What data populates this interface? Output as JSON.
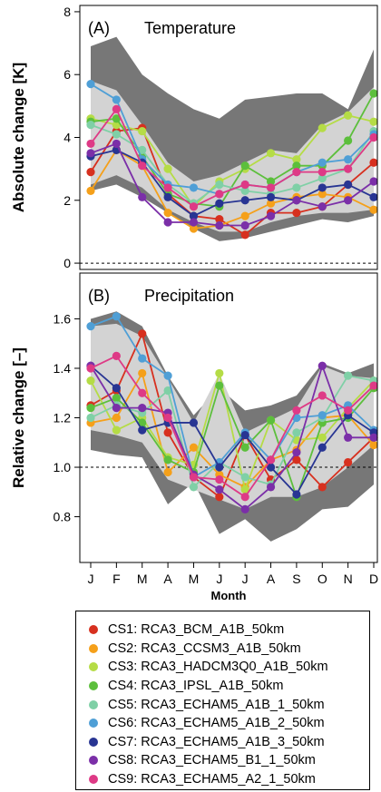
{
  "chart_data": [
    {
      "type": "line",
      "panel_label": "(A)",
      "title": "Temperature",
      "ylabel": "Absolute change [K]",
      "xlabel": "",
      "categories": [
        "J",
        "F",
        "M",
        "A",
        "M",
        "J",
        "J",
        "A",
        "S",
        "O",
        "N",
        "D"
      ],
      "ylim": [
        -0.2,
        8.2
      ],
      "yticks": [
        0,
        2,
        4,
        6,
        8
      ],
      "reference_line": 0,
      "envelope_dark": {
        "upper": [
          6.9,
          7.2,
          6.0,
          5.4,
          4.9,
          4.6,
          5.2,
          5.3,
          5.4,
          5.4,
          4.9,
          6.8
        ],
        "lower": [
          2.3,
          2.5,
          2.1,
          1.6,
          1.1,
          0.7,
          0.8,
          1.0,
          1.2,
          1.4,
          1.3,
          1.5
        ]
      },
      "envelope_light": {
        "upper": [
          5.8,
          5.5,
          4.4,
          3.2,
          2.6,
          2.8,
          3.2,
          3.6,
          3.5,
          4.4,
          4.8,
          5.6
        ],
        "lower": [
          2.5,
          2.8,
          2.4,
          1.7,
          1.3,
          1.0,
          1.0,
          1.3,
          1.5,
          1.6,
          1.6,
          1.7
        ]
      },
      "series": [
        {
          "name": "CS1: RCA3_BCM_A1B_50km",
          "color": "#d7301f",
          "values": [
            2.9,
            4.2,
            4.3,
            2.2,
            1.5,
            1.4,
            0.9,
            1.6,
            1.6,
            1.8,
            2.5,
            3.2
          ]
        },
        {
          "name": "CS2: RCA3_CCSM3_A1B_50km",
          "color": "#f5a01a",
          "values": [
            2.3,
            3.6,
            3.1,
            1.6,
            1.1,
            1.2,
            1.5,
            1.9,
            2.1,
            2.2,
            2.1,
            1.7
          ]
        },
        {
          "name": "CS3: RCA3_HADCM3Q0_A1B_50km",
          "color": "#b5dc46",
          "values": [
            4.6,
            4.4,
            4.2,
            3.0,
            1.8,
            2.6,
            3.0,
            3.5,
            3.3,
            4.3,
            4.7,
            4.5
          ]
        },
        {
          "name": "CS4: RCA3_IPSL_A1B_50km",
          "color": "#5cbf3c",
          "values": [
            4.5,
            4.6,
            3.4,
            2.2,
            1.9,
            1.8,
            3.1,
            2.6,
            3.1,
            3.1,
            3.9,
            5.4
          ]
        },
        {
          "name": "CS5: RCA3_ECHAM5_A1B_1_50km",
          "color": "#7fd0a6",
          "values": [
            4.4,
            4.1,
            3.6,
            2.5,
            1.9,
            2.5,
            2.3,
            2.2,
            2.4,
            2.7,
            3.0,
            4.2
          ]
        },
        {
          "name": "CS6: RCA3_ECHAM5_A1B_2_50km",
          "color": "#4f9fd6",
          "values": [
            5.7,
            5.2,
            3.3,
            2.5,
            2.4,
            2.2,
            2.5,
            2.4,
            2.9,
            3.2,
            3.3,
            4.1
          ]
        },
        {
          "name": "CS7: RCA3_ECHAM5_A1B_3_50km",
          "color": "#283593",
          "values": [
            3.4,
            3.6,
            3.2,
            2.1,
            1.5,
            1.9,
            2.0,
            2.1,
            2.0,
            2.4,
            2.5,
            2.1
          ]
        },
        {
          "name": "CS8: RCA3_ECHAM5_B1_1_50km",
          "color": "#7b2fa8",
          "values": [
            3.5,
            3.8,
            2.1,
            1.3,
            1.3,
            1.2,
            1.2,
            1.5,
            2.0,
            1.8,
            2.0,
            2.6
          ]
        },
        {
          "name": "CS9: RCA3_ECHAM5_A2_1_50km",
          "color": "#de3a86",
          "values": [
            3.8,
            4.9,
            3.1,
            2.4,
            1.8,
            2.2,
            2.5,
            2.4,
            2.9,
            2.9,
            3.0,
            4.0
          ]
        }
      ]
    },
    {
      "type": "line",
      "panel_label": "(B)",
      "title": "Precipitation",
      "ylabel": "Relative change [–]",
      "xlabel": "Month",
      "categories": [
        "J",
        "F",
        "M",
        "A",
        "M",
        "J",
        "J",
        "A",
        "S",
        "O",
        "N",
        "D"
      ],
      "ylim": [
        0.615,
        1.785
      ],
      "yticks": [
        0.8,
        1.0,
        1.2,
        1.4,
        1.6
      ],
      "reference_line": 1.0,
      "envelope_dark": {
        "upper": [
          1.6,
          1.63,
          1.57,
          1.37,
          1.21,
          1.32,
          1.23,
          1.25,
          1.29,
          1.42,
          1.38,
          1.42
        ],
        "lower": [
          1.07,
          1.05,
          1.04,
          0.85,
          0.94,
          0.73,
          0.79,
          0.7,
          0.75,
          0.83,
          0.84,
          0.93
        ]
      },
      "envelope_light": {
        "upper": [
          1.57,
          1.58,
          1.53,
          1.36,
          1.18,
          1.38,
          1.14,
          1.19,
          1.24,
          1.41,
          1.37,
          1.36
        ],
        "lower": [
          1.15,
          1.13,
          1.1,
          0.95,
          0.91,
          0.87,
          0.83,
          0.88,
          0.88,
          0.92,
          1.0,
          1.09
        ]
      },
      "series": [
        {
          "name": "CS1: RCA3_BCM_A1B_50km",
          "color": "#d7301f",
          "values": [
            1.25,
            1.31,
            1.54,
            1.14,
            0.96,
            0.88,
            1.13,
            0.95,
            1.03,
            0.92,
            1.02,
            1.12
          ]
        },
        {
          "name": "CS2: RCA3_CCSM3_A1B_50km",
          "color": "#f5a01a",
          "values": [
            1.18,
            1.2,
            1.38,
            0.98,
            1.08,
            0.97,
            0.92,
            1.03,
            1.07,
            1.2,
            1.21,
            1.09
          ]
        },
        {
          "name": "CS3: RCA3_HADCM3Q0_A1B_50km",
          "color": "#b5dc46",
          "values": [
            1.35,
            1.15,
            1.2,
            1.04,
            1.01,
            1.38,
            0.91,
            1.19,
            1.11,
            1.12,
            1.24,
            1.35
          ]
        },
        {
          "name": "CS4: RCA3_IPSL_A1B_50km",
          "color": "#5cbf3c",
          "values": [
            1.24,
            1.28,
            1.18,
            1.03,
            0.98,
            1.33,
            1.08,
            1.19,
            0.88,
            1.18,
            1.2,
            1.32
          ]
        },
        {
          "name": "CS5: RCA3_ECHAM5_A1B_1_50km",
          "color": "#7fd0a6",
          "values": [
            1.2,
            1.25,
            1.22,
            1.31,
            0.92,
            1.02,
            0.96,
            0.93,
            1.14,
            1.2,
            1.37,
            1.35
          ]
        },
        {
          "name": "CS6: RCA3_ECHAM5_A1B_2_50km",
          "color": "#4f9fd6",
          "values": [
            1.57,
            1.61,
            1.44,
            1.37,
            0.96,
            1.02,
            1.14,
            1.03,
            1.2,
            1.21,
            1.25,
            1.15
          ]
        },
        {
          "name": "CS7: RCA3_ECHAM5_A1B_3_50km",
          "color": "#283593",
          "values": [
            1.41,
            1.32,
            1.15,
            1.18,
            1.18,
            1.0,
            1.13,
            1.0,
            0.89,
            1.08,
            1.21,
            1.14
          ]
        },
        {
          "name": "CS8: RCA3_ECHAM5_B1_1_50km",
          "color": "#7b2fa8",
          "values": [
            1.41,
            1.24,
            1.24,
            1.22,
            0.97,
            0.91,
            0.83,
            0.92,
            1.06,
            1.41,
            1.12,
            1.12
          ]
        },
        {
          "name": "CS9: RCA3_ECHAM5_A2_1_50km",
          "color": "#de3a86",
          "values": [
            1.4,
            1.45,
            1.3,
            1.2,
            0.96,
            0.95,
            0.88,
            1.03,
            1.23,
            1.29,
            1.23,
            1.33
          ]
        }
      ]
    }
  ],
  "legend": {
    "items": [
      {
        "label": "CS1: RCA3_BCM_A1B_50km",
        "color": "#d7301f"
      },
      {
        "label": "CS2: RCA3_CCSM3_A1B_50km",
        "color": "#f5a01a"
      },
      {
        "label": "CS3: RCA3_HADCM3Q0_A1B_50km",
        "color": "#b5dc46"
      },
      {
        "label": "CS4: RCA3_IPSL_A1B_50km",
        "color": "#5cbf3c"
      },
      {
        "label": "CS5: RCA3_ECHAM5_A1B_1_50km",
        "color": "#7fd0a6"
      },
      {
        "label": "CS6: RCA3_ECHAM5_A1B_2_50km",
        "color": "#4f9fd6"
      },
      {
        "label": "CS7: RCA3_ECHAM5_A1B_3_50km",
        "color": "#283593"
      },
      {
        "label": "CS8: RCA3_ECHAM5_B1_1_50km",
        "color": "#7b2fa8"
      },
      {
        "label": "CS9: RCA3_ECHAM5_A2_1_50km",
        "color": "#de3a86"
      }
    ]
  },
  "colors": {
    "envelope_dark": "#777777",
    "envelope_light": "#d3d3d3"
  }
}
